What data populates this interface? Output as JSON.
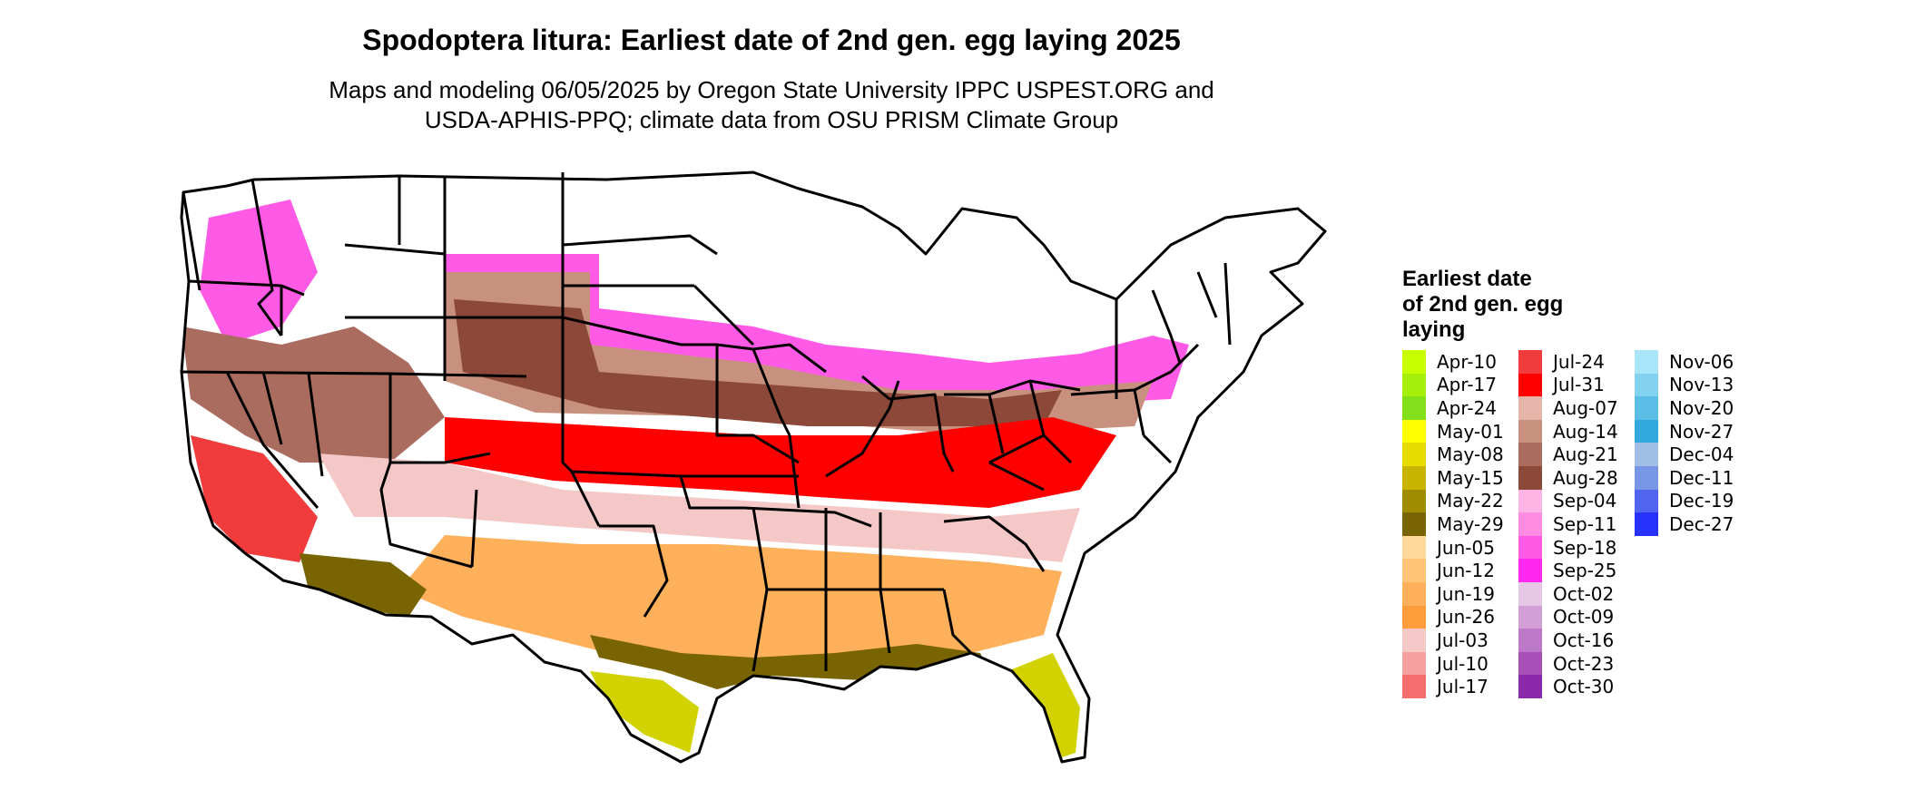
{
  "title": "Spodoptera litura: Earliest date of 2nd gen. egg laying 2025",
  "subtitle": {
    "line1": "Maps and modeling 06/05/2025 by Oregon State University IPPC USPEST.ORG and",
    "line2": "USDA-APHIS-PPQ; climate data from OSU PRISM Climate Group"
  },
  "legend": {
    "title_lines": [
      "Earliest date",
      "of 2nd gen. egg",
      "laying"
    ],
    "columns": [
      [
        {
          "label": "Apr-10",
          "color": "#c8ff00"
        },
        {
          "label": "Apr-17",
          "color": "#a6ef0a"
        },
        {
          "label": "Apr-24",
          "color": "#84e01a"
        },
        {
          "label": "May-01",
          "color": "#ffff00"
        },
        {
          "label": "May-08",
          "color": "#e6dc00"
        },
        {
          "label": "May-15",
          "color": "#c8b400"
        },
        {
          "label": "May-22",
          "color": "#a08c00"
        },
        {
          "label": "May-29",
          "color": "#786400"
        },
        {
          "label": "Jun-05",
          "color": "#ffd89a"
        },
        {
          "label": "Jun-12",
          "color": "#ffc478"
        },
        {
          "label": "Jun-19",
          "color": "#ffb05a"
        },
        {
          "label": "Jun-26",
          "color": "#ff9c3c"
        },
        {
          "label": "Jul-03",
          "color": "#f5c8c8"
        },
        {
          "label": "Jul-10",
          "color": "#f7a0a0"
        },
        {
          "label": "Jul-17",
          "color": "#f56e6e"
        }
      ],
      [
        {
          "label": "Jul-24",
          "color": "#f03c3c"
        },
        {
          "label": "Jul-31",
          "color": "#ff0000"
        },
        {
          "label": "Aug-07",
          "color": "#e6b4a8"
        },
        {
          "label": "Aug-14",
          "color": "#c8907e"
        },
        {
          "label": "Aug-21",
          "color": "#aa6c5e"
        },
        {
          "label": "Aug-28",
          "color": "#8c4838"
        },
        {
          "label": "Sep-04",
          "color": "#ffb4e6"
        },
        {
          "label": "Sep-11",
          "color": "#ff8ce0"
        },
        {
          "label": "Sep-18",
          "color": "#ff5ae6"
        },
        {
          "label": "Sep-25",
          "color": "#ff28f0"
        },
        {
          "label": "Oct-02",
          "color": "#e6c8e6"
        },
        {
          "label": "Oct-09",
          "color": "#d2a0d6"
        },
        {
          "label": "Oct-16",
          "color": "#be78c8"
        },
        {
          "label": "Oct-23",
          "color": "#a850b8"
        },
        {
          "label": "Oct-30",
          "color": "#8c28aa"
        }
      ],
      [
        {
          "label": "Nov-06",
          "color": "#aae6fa"
        },
        {
          "label": "Nov-13",
          "color": "#82d2f0"
        },
        {
          "label": "Nov-20",
          "color": "#5abee6"
        },
        {
          "label": "Nov-27",
          "color": "#32a8dc"
        },
        {
          "label": "Dec-04",
          "color": "#a0bee6"
        },
        {
          "label": "Dec-11",
          "color": "#7896e6"
        },
        {
          "label": "Dec-19",
          "color": "#5064f0"
        },
        {
          "label": "Dec-27",
          "color": "#2832ff"
        }
      ]
    ]
  },
  "map_colors": {
    "white": "#ffffff",
    "pink": "#ff5ae6",
    "brown_light": "#c8907e",
    "brown_dark": "#8c4838",
    "red": "#ff0000",
    "salmon": "#f5c8c8",
    "orange": "#ffb05a",
    "olive": "#786400",
    "yellow": "#d2d200",
    "border": "#000000"
  }
}
